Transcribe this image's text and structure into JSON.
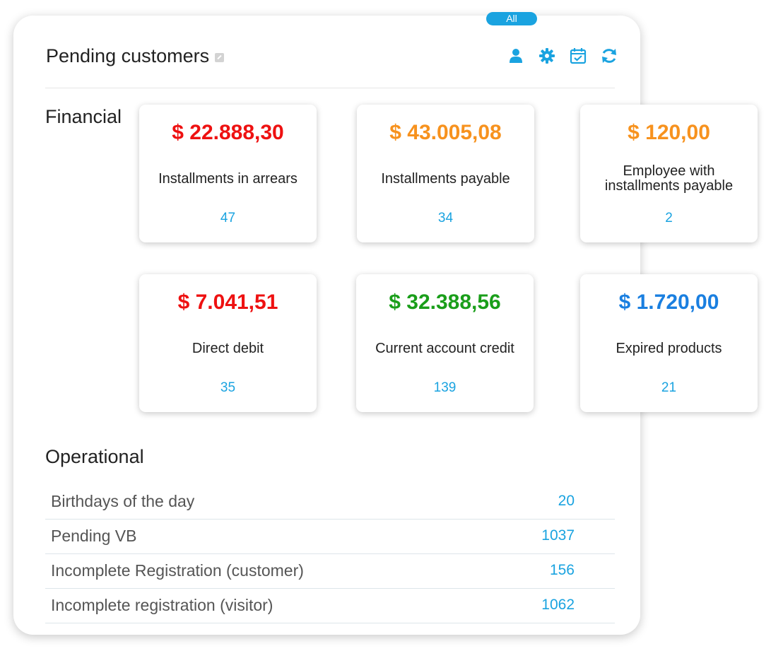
{
  "header": {
    "title": "Pending customers",
    "filter_pill": "All",
    "icons": [
      "user-icon",
      "gear-icon",
      "calendar-check-icon",
      "refresh-icon"
    ],
    "icon_color": "#1aa3e0"
  },
  "sections": {
    "financial": "Financial",
    "operational": "Operational"
  },
  "colors": {
    "red": "#ee1111",
    "orange": "#f7921e",
    "green": "#1a9e1a",
    "blue": "#1a7fe0",
    "accent": "#1aa3e0"
  },
  "cards": [
    {
      "amount": "$ 22.888,30",
      "label": "Installments in arrears",
      "count": "47",
      "color": "#ee1111"
    },
    {
      "amount": "$ 43.005,08",
      "label": "Installments payable",
      "count": "34",
      "color": "#f7921e"
    },
    {
      "amount": "$ 120,00",
      "label": "Employee with installments payable",
      "count": "2",
      "color": "#f7921e"
    },
    {
      "amount": "$ 7.041,51",
      "label": "Direct debit",
      "count": "35",
      "color": "#ee1111"
    },
    {
      "amount": "$ 32.388,56",
      "label": "Current account credit",
      "count": "139",
      "color": "#1a9e1a"
    },
    {
      "amount": "$ 1.720,00",
      "label": "Expired products",
      "count": "21",
      "color": "#1a7fe0"
    }
  ],
  "operational": [
    {
      "label": "Birthdays of the day",
      "count": "20"
    },
    {
      "label": "Pending VB",
      "count": "1037"
    },
    {
      "label": "Incomplete Registration (customer)",
      "count": "156"
    },
    {
      "label": "Incomplete registration (visitor)",
      "count": "1062"
    }
  ]
}
